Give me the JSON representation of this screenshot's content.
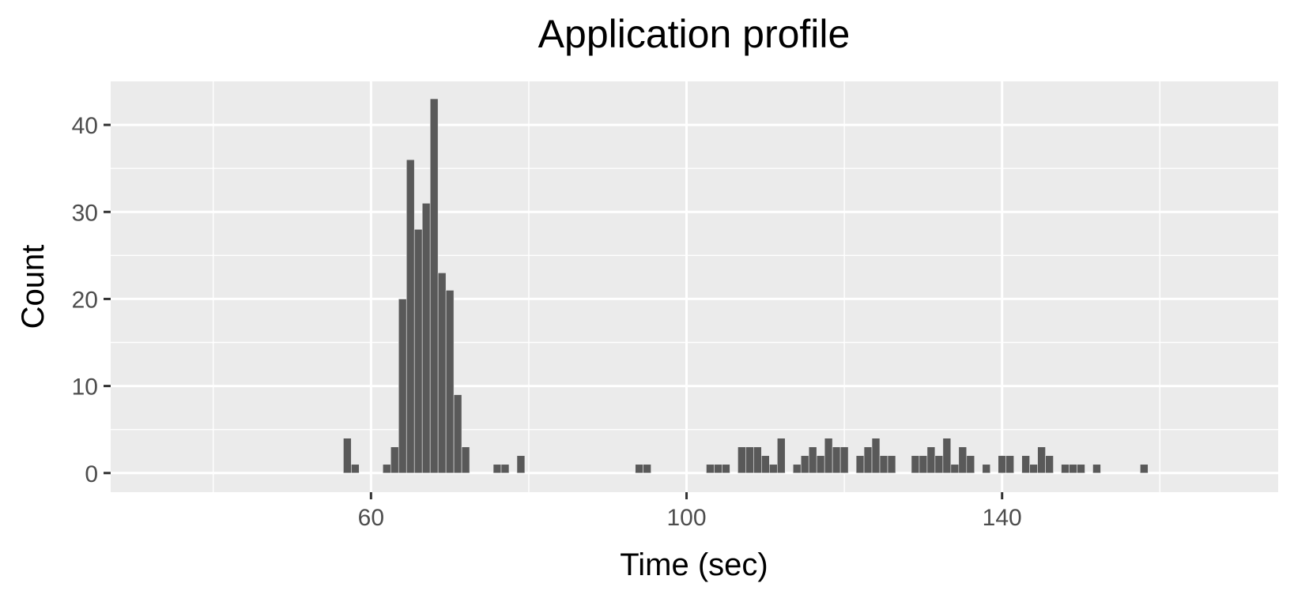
{
  "chart_data": {
    "type": "bar",
    "title": "Application profile",
    "xlabel": "Time (sec)",
    "ylabel": "Count",
    "xlim": [
      27,
      175
    ],
    "ylim": [
      -2.2,
      45
    ],
    "x_ticks": [
      60,
      100,
      140
    ],
    "x_minor_ticks": [
      40,
      80,
      120,
      160
    ],
    "y_ticks": [
      0,
      10,
      20,
      30,
      40
    ],
    "y_minor_ticks": [
      5,
      15,
      25,
      35
    ],
    "bin_width": 1,
    "bar_color": "#595959",
    "panel_color": "#ebebeb",
    "grid": true,
    "legend": "none",
    "bins": [
      {
        "x": 57,
        "count": 4
      },
      {
        "x": 58,
        "count": 1
      },
      {
        "x": 62,
        "count": 1
      },
      {
        "x": 63,
        "count": 3
      },
      {
        "x": 64,
        "count": 20
      },
      {
        "x": 65,
        "count": 36
      },
      {
        "x": 66,
        "count": 28
      },
      {
        "x": 67,
        "count": 31
      },
      {
        "x": 68,
        "count": 43
      },
      {
        "x": 69,
        "count": 23
      },
      {
        "x": 70,
        "count": 21
      },
      {
        "x": 71,
        "count": 9
      },
      {
        "x": 72,
        "count": 3
      },
      {
        "x": 76,
        "count": 1
      },
      {
        "x": 77,
        "count": 1
      },
      {
        "x": 79,
        "count": 2
      },
      {
        "x": 94,
        "count": 1
      },
      {
        "x": 95,
        "count": 1
      },
      {
        "x": 103,
        "count": 1
      },
      {
        "x": 104,
        "count": 1
      },
      {
        "x": 105,
        "count": 1
      },
      {
        "x": 107,
        "count": 3
      },
      {
        "x": 108,
        "count": 3
      },
      {
        "x": 109,
        "count": 3
      },
      {
        "x": 110,
        "count": 2
      },
      {
        "x": 111,
        "count": 1
      },
      {
        "x": 112,
        "count": 4
      },
      {
        "x": 114,
        "count": 1
      },
      {
        "x": 115,
        "count": 2
      },
      {
        "x": 116,
        "count": 3
      },
      {
        "x": 117,
        "count": 2
      },
      {
        "x": 118,
        "count": 4
      },
      {
        "x": 119,
        "count": 3
      },
      {
        "x": 120,
        "count": 3
      },
      {
        "x": 122,
        "count": 2
      },
      {
        "x": 123,
        "count": 3
      },
      {
        "x": 124,
        "count": 4
      },
      {
        "x": 125,
        "count": 2
      },
      {
        "x": 126,
        "count": 2
      },
      {
        "x": 129,
        "count": 2
      },
      {
        "x": 130,
        "count": 2
      },
      {
        "x": 131,
        "count": 3
      },
      {
        "x": 132,
        "count": 2
      },
      {
        "x": 133,
        "count": 4
      },
      {
        "x": 134,
        "count": 1
      },
      {
        "x": 135,
        "count": 3
      },
      {
        "x": 136,
        "count": 2
      },
      {
        "x": 138,
        "count": 1
      },
      {
        "x": 140,
        "count": 2
      },
      {
        "x": 141,
        "count": 2
      },
      {
        "x": 143,
        "count": 2
      },
      {
        "x": 144,
        "count": 1
      },
      {
        "x": 145,
        "count": 3
      },
      {
        "x": 146,
        "count": 2
      },
      {
        "x": 148,
        "count": 1
      },
      {
        "x": 149,
        "count": 1
      },
      {
        "x": 150,
        "count": 1
      },
      {
        "x": 152,
        "count": 1
      },
      {
        "x": 158,
        "count": 1
      }
    ]
  }
}
